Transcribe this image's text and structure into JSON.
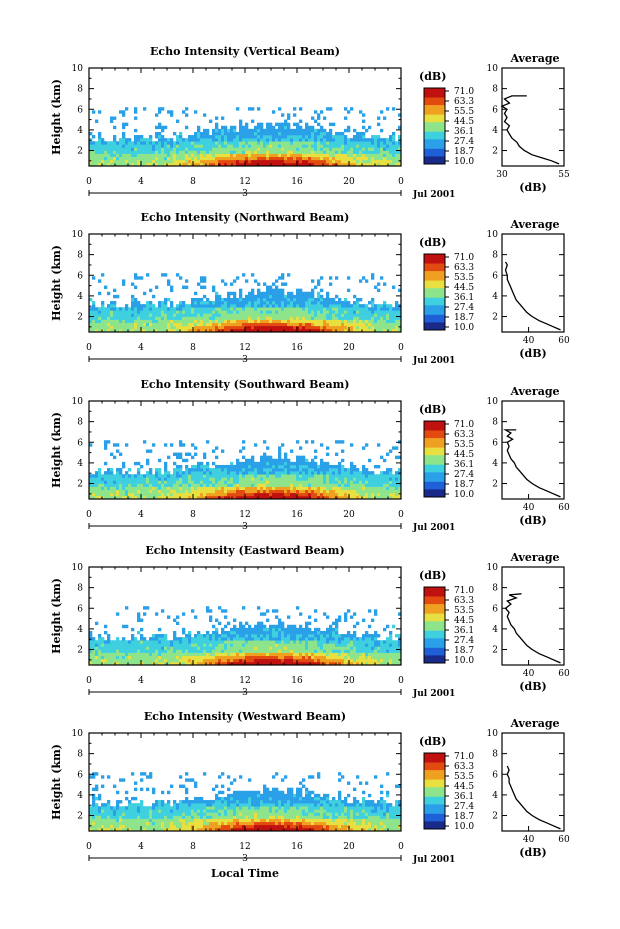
{
  "chart_data": [
    {
      "type": "heatmap",
      "title": "Echo Intensity (Vertical Beam)",
      "beam": "Vertical",
      "xlabel": "",
      "ylabel": "Height (km)",
      "xlim": [
        0,
        24
      ],
      "ylim": [
        0.5,
        10
      ],
      "xticks": [
        "0",
        "4",
        "8",
        "12",
        "16",
        "20",
        "0"
      ],
      "yticks": [
        "2",
        "4",
        "6",
        "8",
        "10"
      ],
      "day_label": "3",
      "date_label": "Jul 2001",
      "colorbar": {
        "unit": "(dB)",
        "levels": [
          "71.0",
          "63.3",
          "55.5",
          "44.5",
          "36.1",
          "27.4",
          "18.7",
          "10.0"
        ]
      },
      "average": {
        "title": "Average",
        "xlabel": "(dB)",
        "xticks": [
          "30",
          "55"
        ],
        "xlim": [
          30,
          55
        ],
        "ylim": [
          0.5,
          10
        ],
        "yticks": [
          "2",
          "4",
          "6",
          "8",
          "10"
        ],
        "profile": [
          [
            53,
            0.7
          ],
          [
            50,
            1.0
          ],
          [
            46,
            1.3
          ],
          [
            42,
            1.6
          ],
          [
            39,
            2.0
          ],
          [
            37,
            2.4
          ],
          [
            36,
            2.8
          ],
          [
            34,
            3.2
          ],
          [
            33,
            3.6
          ],
          [
            32,
            4.0
          ],
          [
            33,
            4.4
          ],
          [
            31,
            4.8
          ],
          [
            32,
            5.2
          ],
          [
            31,
            5.6
          ],
          [
            32,
            6.0
          ],
          [
            30,
            6.3
          ],
          [
            33,
            6.6
          ],
          [
            31,
            7.0
          ],
          [
            34,
            7.3
          ],
          [
            40,
            7.3
          ]
        ]
      }
    },
    {
      "type": "heatmap",
      "title": "Echo Intensity (Northward Beam)",
      "beam": "Northward",
      "xlabel": "",
      "ylabel": "Height (km)",
      "xlim": [
        0,
        24
      ],
      "ylim": [
        0.5,
        10
      ],
      "xticks": [
        "0",
        "4",
        "8",
        "12",
        "16",
        "20",
        "0"
      ],
      "yticks": [
        "2",
        "4",
        "6",
        "8",
        "10"
      ],
      "day_label": "3",
      "date_label": "Jul 2001",
      "colorbar": {
        "unit": "(dB)",
        "levels": [
          "71.0",
          "63.3",
          "53.5",
          "44.5",
          "36.1",
          "27.4",
          "18.7",
          "10.0"
        ]
      },
      "average": {
        "title": "Average",
        "xlabel": "(dB)",
        "xticks": [
          "40",
          "60"
        ],
        "xlim": [
          25,
          60
        ],
        "ylim": [
          0.5,
          10
        ],
        "yticks": [
          "2",
          "4",
          "6",
          "8",
          "10"
        ],
        "profile": [
          [
            58,
            0.7
          ],
          [
            54,
            1.0
          ],
          [
            50,
            1.3
          ],
          [
            46,
            1.6
          ],
          [
            42,
            2.0
          ],
          [
            39,
            2.4
          ],
          [
            37,
            2.8
          ],
          [
            35,
            3.2
          ],
          [
            33,
            3.6
          ],
          [
            32,
            4.0
          ],
          [
            31,
            4.4
          ],
          [
            30,
            4.8
          ],
          [
            29,
            5.2
          ],
          [
            28,
            5.6
          ],
          [
            28,
            6.0
          ],
          [
            27,
            6.5
          ],
          [
            28,
            7.0
          ],
          [
            27,
            7.3
          ]
        ]
      }
    },
    {
      "type": "heatmap",
      "title": "Echo Intensity (Southward Beam)",
      "beam": "Southward",
      "xlabel": "",
      "ylabel": "Height (km)",
      "xlim": [
        0,
        24
      ],
      "ylim": [
        0.5,
        10
      ],
      "xticks": [
        "0",
        "4",
        "8",
        "12",
        "16",
        "20",
        "0"
      ],
      "yticks": [
        "2",
        "4",
        "6",
        "8",
        "10"
      ],
      "day_label": "3",
      "date_label": "Jul 2001",
      "colorbar": {
        "unit": "(dB)",
        "levels": [
          "71.0",
          "63.3",
          "53.5",
          "44.5",
          "36.1",
          "27.4",
          "18.7",
          "10.0"
        ]
      },
      "average": {
        "title": "Average",
        "xlabel": "(dB)",
        "xticks": [
          "40",
          "60"
        ],
        "xlim": [
          25,
          60
        ],
        "ylim": [
          0.5,
          10
        ],
        "yticks": [
          "2",
          "4",
          "6",
          "8",
          "10"
        ],
        "profile": [
          [
            58,
            0.7
          ],
          [
            54,
            1.0
          ],
          [
            50,
            1.3
          ],
          [
            46,
            1.6
          ],
          [
            42,
            2.0
          ],
          [
            39,
            2.4
          ],
          [
            37,
            2.8
          ],
          [
            35,
            3.2
          ],
          [
            33,
            3.6
          ],
          [
            32,
            4.0
          ],
          [
            30,
            4.4
          ],
          [
            29,
            4.8
          ],
          [
            28,
            5.2
          ],
          [
            29,
            5.6
          ],
          [
            28,
            6.0
          ],
          [
            31,
            6.3
          ],
          [
            28,
            6.6
          ],
          [
            30,
            6.9
          ],
          [
            27,
            7.2
          ],
          [
            33,
            7.2
          ]
        ]
      }
    },
    {
      "type": "heatmap",
      "title": "Echo Intensity (Eastward Beam)",
      "beam": "Eastward",
      "xlabel": "",
      "ylabel": "Height (km)",
      "xlim": [
        0,
        24
      ],
      "ylim": [
        0.5,
        10
      ],
      "xticks": [
        "0",
        "4",
        "8",
        "12",
        "16",
        "20",
        "0"
      ],
      "yticks": [
        "2",
        "4",
        "6",
        "8",
        "10"
      ],
      "day_label": "3",
      "date_label": "Jul 2001",
      "colorbar": {
        "unit": "(dB)",
        "levels": [
          "71.0",
          "63.3",
          "53.5",
          "44.5",
          "36.1",
          "27.4",
          "18.7",
          "10.0"
        ]
      },
      "average": {
        "title": "Average",
        "xlabel": "(dB)",
        "xticks": [
          "40",
          "60"
        ],
        "xlim": [
          25,
          60
        ],
        "ylim": [
          0.5,
          10
        ],
        "yticks": [
          "2",
          "4",
          "6",
          "8",
          "10"
        ],
        "profile": [
          [
            58,
            0.7
          ],
          [
            54,
            1.0
          ],
          [
            50,
            1.3
          ],
          [
            46,
            1.6
          ],
          [
            42,
            2.0
          ],
          [
            39,
            2.4
          ],
          [
            37,
            2.8
          ],
          [
            35,
            3.2
          ],
          [
            33,
            3.6
          ],
          [
            32,
            4.0
          ],
          [
            30,
            4.4
          ],
          [
            29,
            4.8
          ],
          [
            28,
            5.2
          ],
          [
            29,
            5.6
          ],
          [
            27,
            6.0
          ],
          [
            30,
            6.4
          ],
          [
            28,
            6.7
          ],
          [
            33,
            7.0
          ],
          [
            29,
            7.3
          ],
          [
            36,
            7.4
          ]
        ]
      }
    },
    {
      "type": "heatmap",
      "title": "Echo Intensity (Westward Beam)",
      "beam": "Westward",
      "xlabel": "Local Time",
      "ylabel": "Height (km)",
      "xlim": [
        0,
        24
      ],
      "ylim": [
        0.5,
        10
      ],
      "xticks": [
        "0",
        "4",
        "8",
        "12",
        "16",
        "20",
        "0"
      ],
      "yticks": [
        "2",
        "4",
        "6",
        "8",
        "10"
      ],
      "day_label": "3",
      "date_label": "Jul 2001",
      "colorbar": {
        "unit": "(dB)",
        "levels": [
          "71.0",
          "63.3",
          "53.5",
          "44.5",
          "36.1",
          "27.4",
          "18.7",
          "10.0"
        ]
      },
      "average": {
        "title": "Average",
        "xlabel": "(dB)",
        "xticks": [
          "40",
          "60"
        ],
        "xlim": [
          25,
          60
        ],
        "ylim": [
          0.5,
          10
        ],
        "yticks": [
          "2",
          "4",
          "6",
          "8",
          "10"
        ],
        "profile": [
          [
            58,
            0.7
          ],
          [
            54,
            1.0
          ],
          [
            50,
            1.3
          ],
          [
            46,
            1.6
          ],
          [
            42,
            2.0
          ],
          [
            39,
            2.4
          ],
          [
            37,
            2.8
          ],
          [
            35,
            3.2
          ],
          [
            33,
            3.6
          ],
          [
            32,
            4.0
          ],
          [
            31,
            4.4
          ],
          [
            30,
            4.8
          ],
          [
            29,
            5.2
          ],
          [
            29,
            5.6
          ],
          [
            28,
            6.0
          ],
          [
            29,
            6.4
          ],
          [
            28,
            6.8
          ]
        ]
      }
    }
  ],
  "colors": {
    "scale": [
      "#1a2a8a",
      "#1f5fd8",
      "#2aa0e8",
      "#3fd0e0",
      "#8ee48a",
      "#e8e040",
      "#f0a020",
      "#e24a10",
      "#c01010"
    ]
  }
}
